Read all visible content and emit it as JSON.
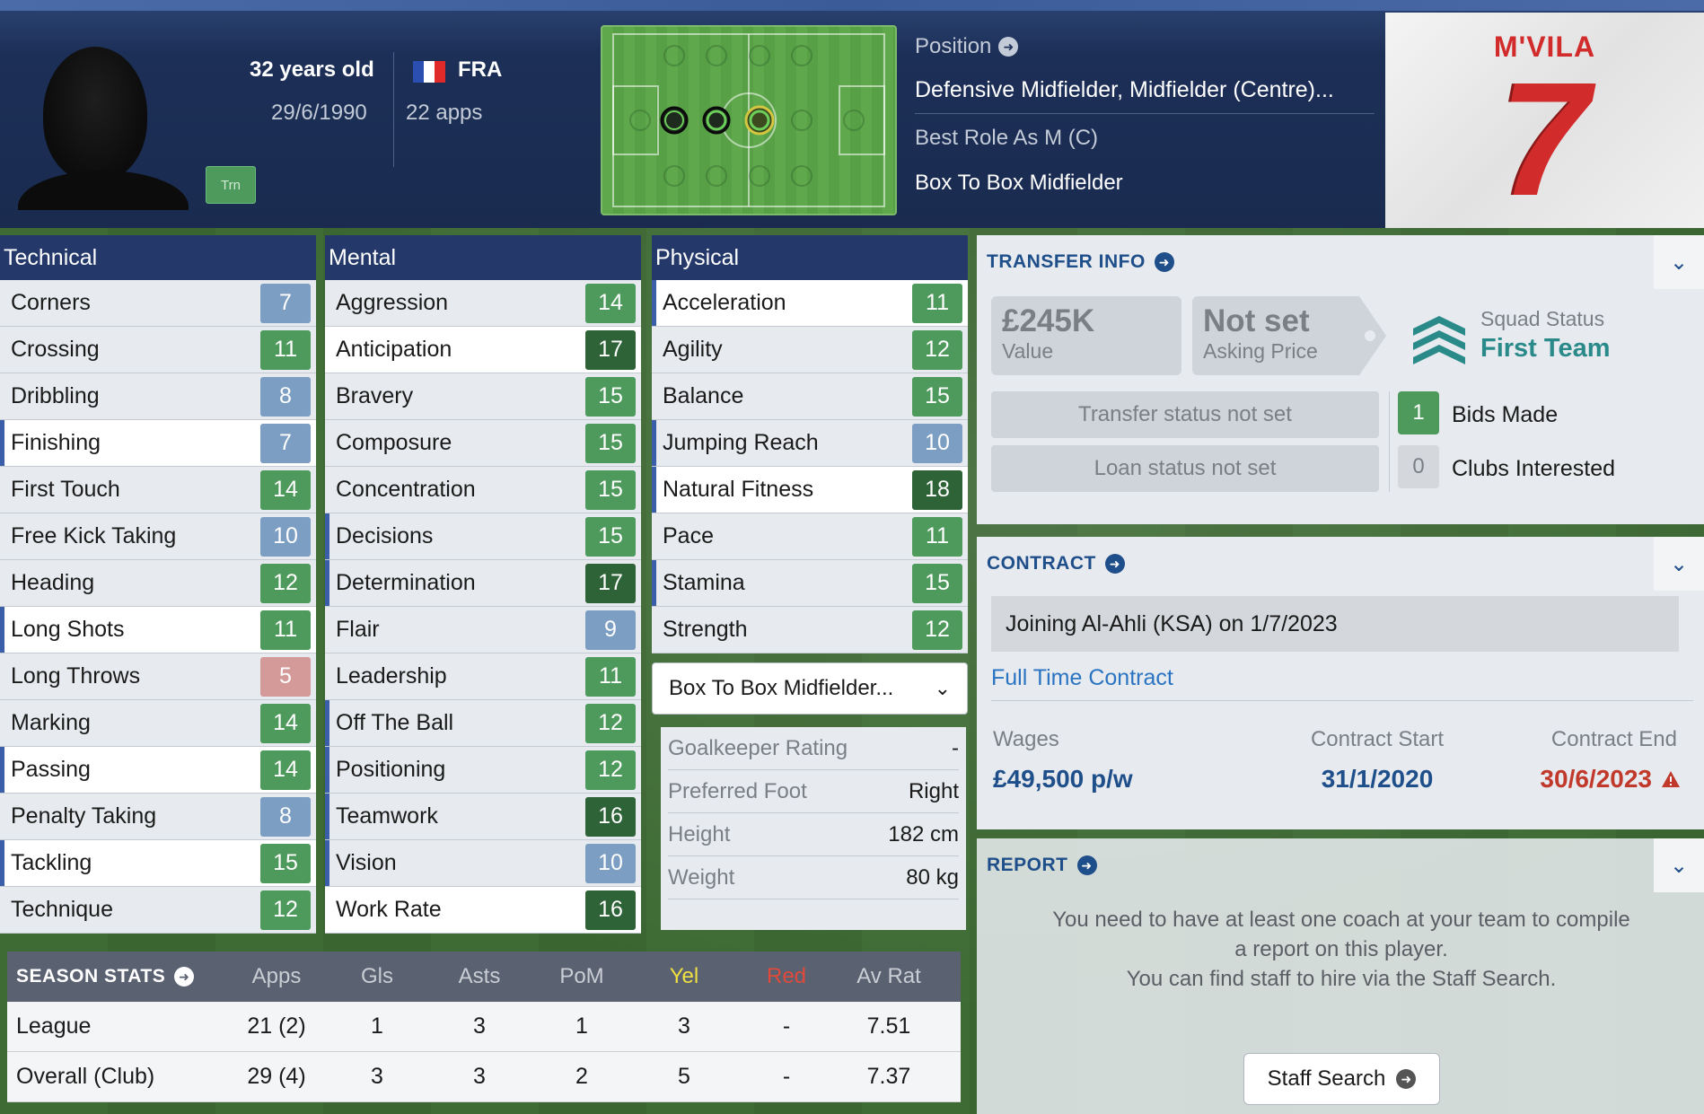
{
  "header": {
    "age": "32 years old",
    "dob": "29/6/1990",
    "nation": "FRA",
    "apps": "22 apps",
    "trn_badge": "Trn",
    "position_label": "Position",
    "position_value": "Defensive Midfielder, Midfielder (Centre)...",
    "best_role_label": "Best Role As M (C)",
    "best_role_value": "Box To Box Midfielder",
    "shirt_name": "M'VILA",
    "shirt_number": "7"
  },
  "technical": {
    "title": "Technical",
    "items": [
      {
        "label": "Corners",
        "value": "7"
      },
      {
        "label": "Crossing",
        "value": "11"
      },
      {
        "label": "Dribbling",
        "value": "8"
      },
      {
        "label": "Finishing",
        "value": "7"
      },
      {
        "label": "First Touch",
        "value": "14"
      },
      {
        "label": "Free Kick Taking",
        "value": "10"
      },
      {
        "label": "Heading",
        "value": "12"
      },
      {
        "label": "Long Shots",
        "value": "11"
      },
      {
        "label": "Long Throws",
        "value": "5"
      },
      {
        "label": "Marking",
        "value": "14"
      },
      {
        "label": "Passing",
        "value": "14"
      },
      {
        "label": "Penalty Taking",
        "value": "8"
      },
      {
        "label": "Tackling",
        "value": "15"
      },
      {
        "label": "Technique",
        "value": "12"
      }
    ]
  },
  "mental": {
    "title": "Mental",
    "items": [
      {
        "label": "Aggression",
        "value": "14"
      },
      {
        "label": "Anticipation",
        "value": "17"
      },
      {
        "label": "Bravery",
        "value": "15"
      },
      {
        "label": "Composure",
        "value": "15"
      },
      {
        "label": "Concentration",
        "value": "15"
      },
      {
        "label": "Decisions",
        "value": "15"
      },
      {
        "label": "Determination",
        "value": "17"
      },
      {
        "label": "Flair",
        "value": "9"
      },
      {
        "label": "Leadership",
        "value": "11"
      },
      {
        "label": "Off The Ball",
        "value": "12"
      },
      {
        "label": "Positioning",
        "value": "12"
      },
      {
        "label": "Teamwork",
        "value": "16"
      },
      {
        "label": "Vision",
        "value": "10"
      },
      {
        "label": "Work Rate",
        "value": "16"
      }
    ]
  },
  "physical": {
    "title": "Physical",
    "items": [
      {
        "label": "Acceleration",
        "value": "11"
      },
      {
        "label": "Agility",
        "value": "12"
      },
      {
        "label": "Balance",
        "value": "15"
      },
      {
        "label": "Jumping Reach",
        "value": "10"
      },
      {
        "label": "Natural Fitness",
        "value": "18"
      },
      {
        "label": "Pace",
        "value": "11"
      },
      {
        "label": "Stamina",
        "value": "15"
      },
      {
        "label": "Strength",
        "value": "12"
      }
    ],
    "role_dropdown": "Box To Box Midfielder...",
    "info": [
      {
        "label": "Goalkeeper Rating",
        "value": "-"
      },
      {
        "label": "Preferred Foot",
        "value": "Right"
      },
      {
        "label": "Height",
        "value": "182 cm"
      },
      {
        "label": "Weight",
        "value": "80 kg"
      }
    ]
  },
  "season_stats": {
    "title": "SEASON STATS",
    "columns": [
      "Apps",
      "Gls",
      "Asts",
      "PoM",
      "Yel",
      "Red",
      "Av Rat"
    ],
    "rows": [
      {
        "label": "League",
        "cells": [
          "21 (2)",
          "1",
          "3",
          "1",
          "3",
          "-",
          "7.51"
        ]
      },
      {
        "label": "Overall (Club)",
        "cells": [
          "29 (4)",
          "3",
          "3",
          "2",
          "5",
          "-",
          "7.37"
        ]
      }
    ]
  },
  "transfer_info": {
    "title": "TRANSFER INFO",
    "value_amount": "£245K",
    "value_label": "Value",
    "asking_amount": "Not set",
    "asking_label": "Asking Price",
    "squad_status_label": "Squad Status",
    "squad_status_value": "First Team",
    "transfer_status": "Transfer status not set",
    "loan_status": "Loan status not set",
    "bids_count": "1",
    "bids_label": "Bids Made",
    "clubs_count": "0",
    "clubs_label": "Clubs Interested"
  },
  "contract": {
    "title": "CONTRACT",
    "joining": "Joining Al-Ahli (KSA) on 1/7/2023",
    "type": "Full Time Contract",
    "wages_label": "Wages",
    "wages_value": "£49,500 p/w",
    "start_label": "Contract Start",
    "start_value": "31/1/2020",
    "end_label": "Contract End",
    "end_value": "30/6/2023"
  },
  "report": {
    "title": "REPORT",
    "line1": "You need to have at least one coach at your team to compile",
    "line2": "a report on this player.",
    "line3": "You can find staff to hire via the Staff Search.",
    "staff_button": "Staff Search"
  },
  "colors": {
    "accent_blue": "#1f4f8a",
    "attr_green": "#4e9a5c",
    "attr_dark_green": "#2e6338",
    "attr_blue": "#7b9ec2",
    "attr_red": "#d49a9a",
    "warning_red": "#c0392b",
    "yellow_header": "#f0e040"
  }
}
